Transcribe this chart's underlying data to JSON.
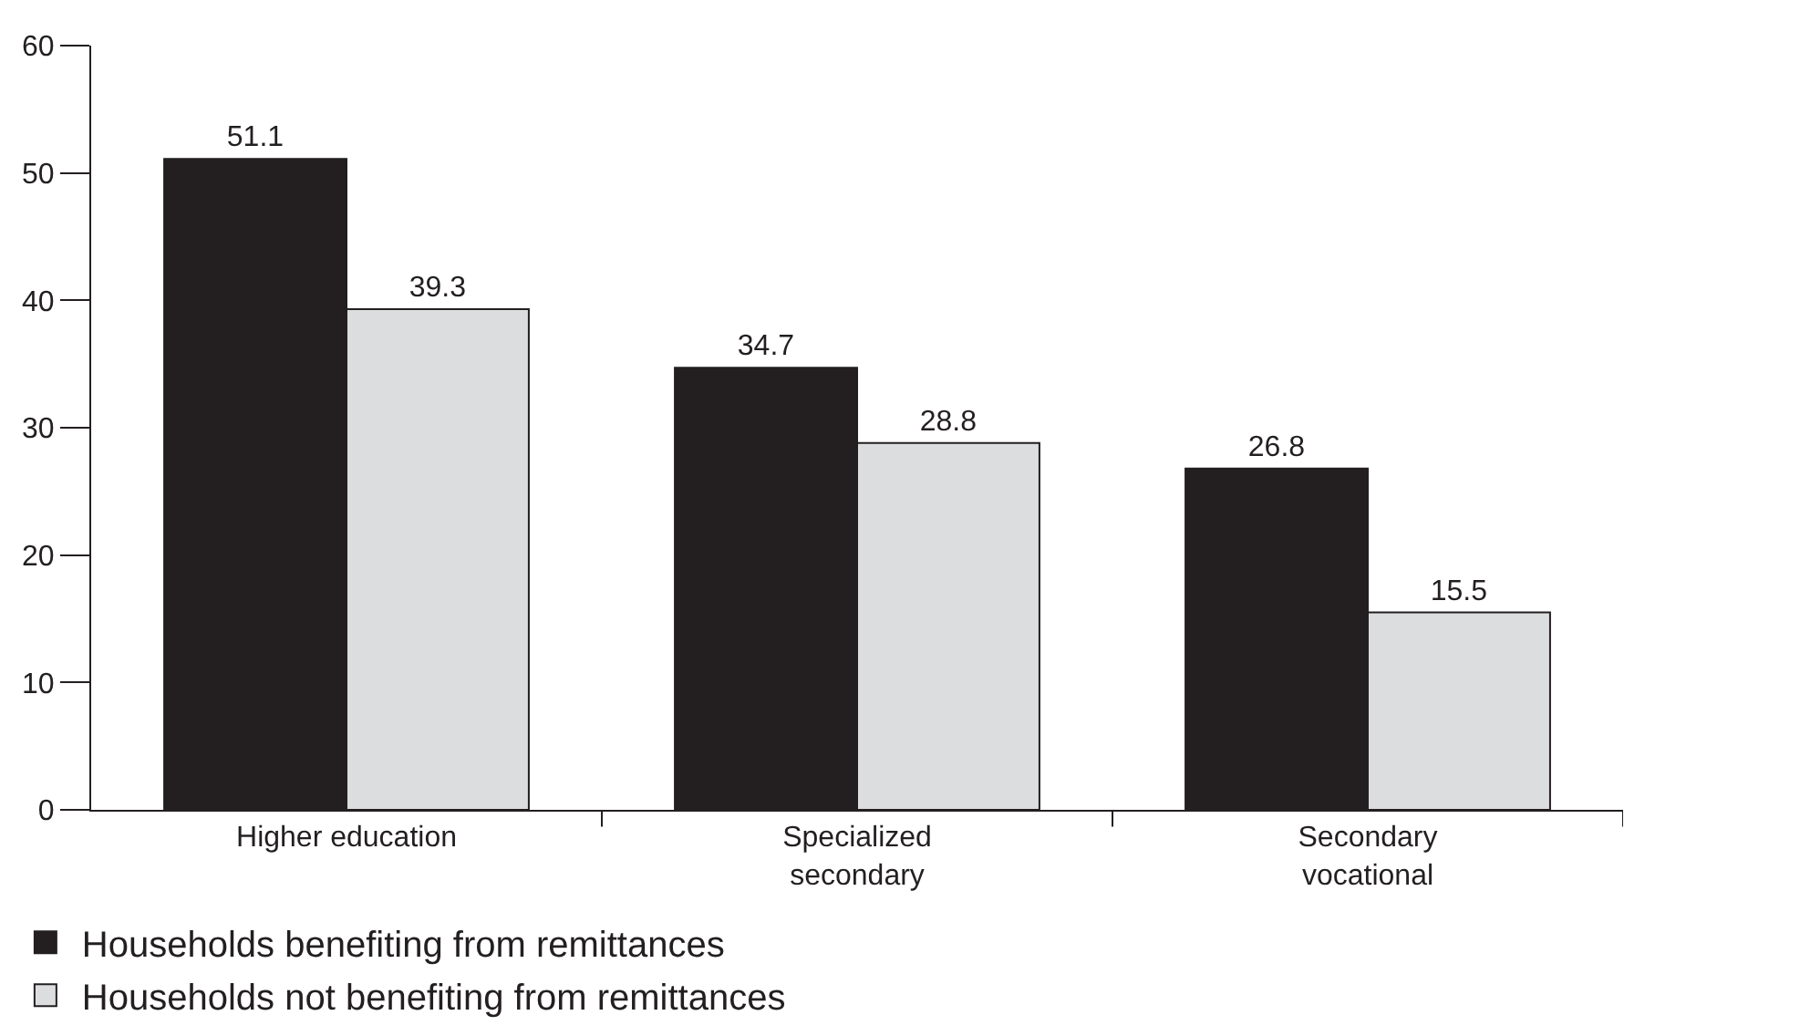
{
  "chart_data": {
    "type": "bar",
    "categories": [
      "Higher education",
      "Specialized secondary",
      "Secondary vocational"
    ],
    "series": [
      {
        "name": "Households benefiting from remittances",
        "color": "#231f20",
        "values": [
          51.1,
          34.7,
          26.8
        ]
      },
      {
        "name": "Households not benefiting from remittances",
        "color": "#dcdddf",
        "values": [
          39.3,
          28.8,
          15.5
        ]
      }
    ],
    "ylim": [
      0,
      60
    ],
    "yticks": [
      0,
      10,
      20,
      30,
      40,
      50,
      60
    ],
    "grid": false,
    "legend": "bottom left",
    "data_labels": true
  }
}
